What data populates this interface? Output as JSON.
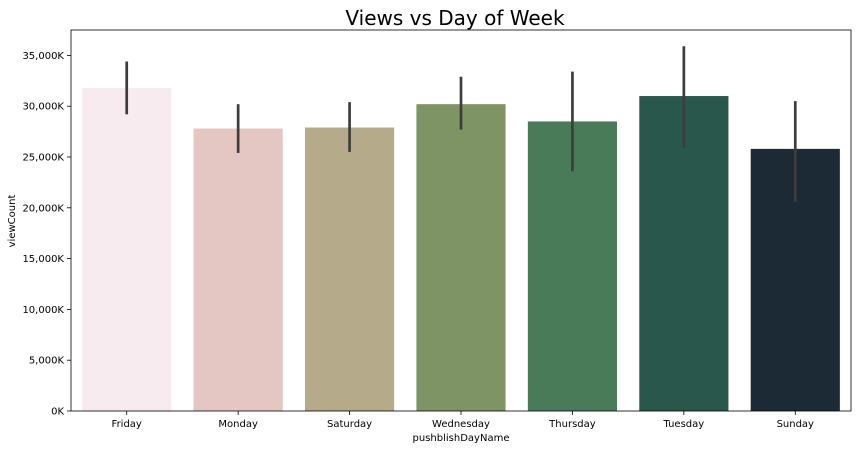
{
  "chart_data": {
    "type": "bar",
    "title": "Views vs Day of Week",
    "xlabel": "pushblishDayName",
    "ylabel": "viewCount",
    "categories": [
      "Friday",
      "Monday",
      "Saturday",
      "Wednesday",
      "Thursday",
      "Tuesday",
      "Sunday"
    ],
    "values": [
      31800,
      27800,
      27900,
      30200,
      28500,
      31000,
      25800
    ],
    "error_bars": [
      [
        29200,
        34400
      ],
      [
        25400,
        30200
      ],
      [
        25500,
        30400
      ],
      [
        27700,
        32900
      ],
      [
        23600,
        33400
      ],
      [
        25900,
        35900
      ],
      [
        20600,
        30500
      ]
    ],
    "colors": [
      "#f8ebef",
      "#e4c7c2",
      "#b5ab8a",
      "#7e9465",
      "#4a7b58",
      "#2a574b",
      "#1b2a35"
    ],
    "error_bar_color": "#3d3d3d",
    "ylim": [
      0,
      37500
    ],
    "yticks": [
      0,
      5000,
      10000,
      15000,
      20000,
      25000,
      30000,
      35000
    ],
    "ytick_labels": [
      "0K",
      "5,000K",
      "10,000K",
      "15,000K",
      "20,000K",
      "25,000K",
      "30,000K",
      "35,000K"
    ],
    "grid": false
  }
}
